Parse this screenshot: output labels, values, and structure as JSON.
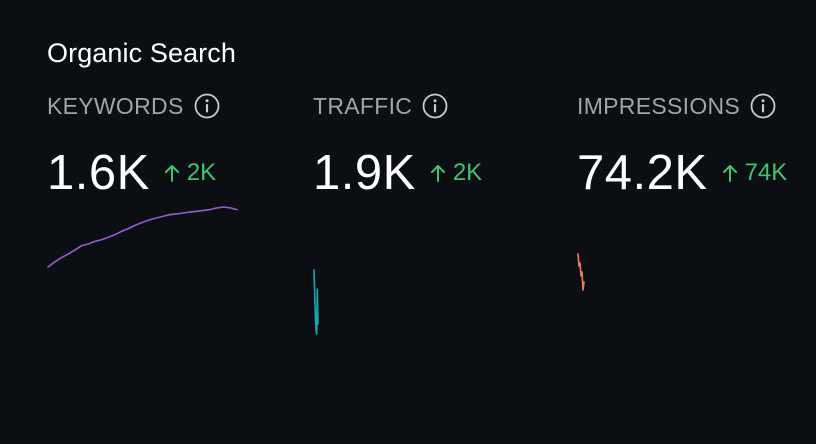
{
  "card": {
    "title": "Organic Search"
  },
  "metrics": [
    {
      "label": "KEYWORDS",
      "value": "1.6K",
      "delta": "2K",
      "color": "#9b59d0",
      "trend": [
        0,
        6,
        11,
        15,
        20,
        25,
        27,
        30,
        32,
        35,
        38,
        42,
        45,
        49,
        52,
        55,
        57,
        59,
        61,
        62,
        63,
        64,
        65,
        66,
        67,
        69,
        70,
        69,
        67
      ]
    },
    {
      "label": "TRAFFIC",
      "value": "1.9K",
      "delta": "2K",
      "color": "#1aa7b0",
      "trend": [
        64,
        40,
        20,
        5,
        0,
        45,
        10
      ]
    },
    {
      "label": "IMPRESSIONS",
      "value": "74.2K",
      "delta": "74K",
      "color": "#f07a5a",
      "trend": [
        36,
        24,
        27,
        14,
        18,
        0,
        8
      ]
    }
  ]
}
